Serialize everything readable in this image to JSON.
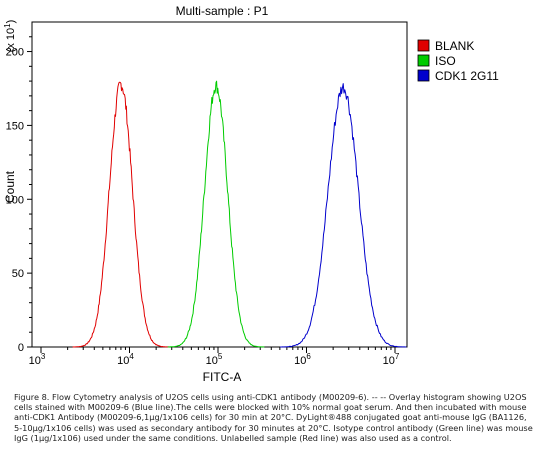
{
  "chart_data": {
    "type": "line",
    "title": "Multi-sample : P1",
    "xlabel": "FITC-A",
    "ylabel": "Count",
    "ylabel_multiplier": "(x 10",
    "ylabel_multiplier_exp": "1",
    "ylabel_multiplier_end": ")",
    "x_scale": "log",
    "xlim": [
      1000,
      10000000
    ],
    "ylim": [
      0,
      220
    ],
    "x_ticks": [
      {
        "base": "10",
        "exp": "3",
        "value": 1000
      },
      {
        "base": "10",
        "exp": "4",
        "value": 10000
      },
      {
        "base": "10",
        "exp": "5",
        "value": 100000
      },
      {
        "base": "10",
        "exp": "6",
        "value": 1000000
      },
      {
        "base": "10",
        "exp": "7",
        "value": 10000000
      }
    ],
    "y_ticks": [
      0,
      50,
      100,
      150,
      200
    ],
    "grid": false,
    "legend_position": "top-right",
    "series": [
      {
        "name": "BLANK",
        "color": "#e00000",
        "peak_x": 8000,
        "peak_y": 178,
        "width": 0.13
      },
      {
        "name": "ISO",
        "color": "#00cc00",
        "peak_x": 95000,
        "peak_y": 177,
        "width": 0.13
      },
      {
        "name": "CDK1 2G11",
        "color": "#0000cc",
        "peak_x": 2600000,
        "peak_y": 176,
        "width": 0.17
      }
    ]
  },
  "caption": "Figure 8. Flow Cytometry analysis of U2OS cells using anti-CDK1 antibody (M00209-6). -- -- Overlay histogram showing U2OS cells stained with M00209-6 (Blue line).The cells were blocked with 10% normal goat serum. And then incubated with mouse anti-CDK1 Antibody (M00209-6,1μg/1x106 cells) for 30 min at 20°C. DyLight®488 conjugated goat anti-mouse IgG (BA1126, 5-10μg/1x106 cells) was used as secondary antibody for 30 minutes at 20°C. Isotype control antibody (Green line) was mouse IgG (1μg/1x106) used under the same conditions. Unlabelled sample (Red line) was also used as a control."
}
